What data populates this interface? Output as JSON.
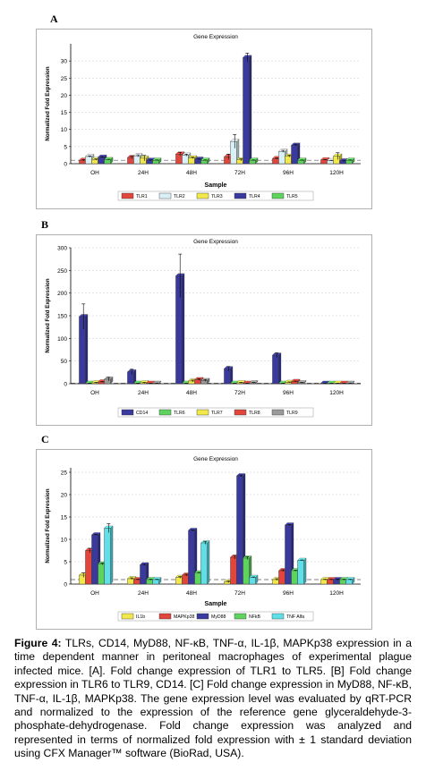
{
  "chart_data": [
    {
      "type": "bar",
      "panel": "A",
      "title": "Gene Expression",
      "xlabel": "Sample",
      "ylabel": "Normalized Fold Expression",
      "categories": [
        "OH",
        "24H",
        "48H",
        "72H",
        "96H",
        "120H"
      ],
      "ylim": [
        0,
        35
      ],
      "yticks": [
        0,
        5,
        10,
        15,
        20,
        25,
        30
      ],
      "legend_position": "bottom",
      "series": [
        {
          "name": "TLR1",
          "color": "#e0463c",
          "values": [
            1.0,
            1.8,
            2.8,
            2.0,
            1.5,
            1.1
          ],
          "errors": [
            0.2,
            0.4,
            0.5,
            0.8,
            0.2,
            0.1
          ]
        },
        {
          "name": "TLR2",
          "color": "#d9f0f7",
          "values": [
            2.1,
            2.3,
            2.5,
            6.5,
            3.6,
            0.9
          ],
          "errors": [
            0.2,
            0.3,
            0.3,
            2.0,
            0.3,
            0.1
          ]
        },
        {
          "name": "TLR3",
          "color": "#f2e84a",
          "values": [
            1.2,
            1.6,
            1.7,
            1.1,
            2.2,
            2.2
          ],
          "errors": [
            0.2,
            0.8,
            0.2,
            0.3,
            0.3,
            1.0
          ]
        },
        {
          "name": "TLR4",
          "color": "#3a3a9e",
          "values": [
            1.9,
            1.0,
            1.3,
            31.0,
            5.4,
            0.8
          ],
          "errors": [
            0.1,
            0.1,
            0.1,
            1.3,
            0.2,
            0.1
          ]
        },
        {
          "name": "TLR5",
          "color": "#5ed35e",
          "values": [
            1.2,
            1.0,
            1.0,
            1.0,
            1.0,
            1.0
          ],
          "errors": [
            0.1,
            0.1,
            0.1,
            0.1,
            0.1,
            0.1
          ]
        }
      ]
    },
    {
      "type": "bar",
      "panel": "B",
      "title": "Gene Expression",
      "xlabel": "",
      "ylabel": "Normalized Fold Expression",
      "categories": [
        "OH",
        "24H",
        "48H",
        "72H",
        "96H",
        "120H"
      ],
      "ylim": [
        0,
        300
      ],
      "yticks": [
        0,
        50,
        100,
        150,
        200,
        250,
        300
      ],
      "legend_position": "bottom",
      "series": [
        {
          "name": "CD14",
          "color": "#3a3a9e",
          "values": [
            148,
            26,
            238,
            33,
            63,
            1
          ],
          "errors": [
            28,
            6,
            48,
            5,
            5,
            0.5
          ]
        },
        {
          "name": "TLR6",
          "color": "#5ed35e",
          "values": [
            1,
            1,
            1,
            1,
            1,
            1
          ],
          "errors": [
            0.5,
            0.5,
            0.5,
            0.5,
            0.5,
            0.5
          ]
        },
        {
          "name": "TLR7",
          "color": "#f2e84a",
          "values": [
            2,
            2,
            6,
            2,
            3,
            1
          ],
          "errors": [
            1,
            1,
            2,
            1,
            1,
            0.5
          ]
        },
        {
          "name": "TLR8",
          "color": "#e0463c",
          "values": [
            4,
            1,
            9,
            1,
            5,
            1
          ],
          "errors": [
            1,
            0.5,
            2,
            0.5,
            1,
            0.5
          ]
        },
        {
          "name": "TLR9",
          "color": "#9a9a9a",
          "values": [
            10,
            1,
            7,
            2,
            2,
            1
          ],
          "errors": [
            4,
            0.5,
            2,
            1,
            1,
            0.5
          ]
        }
      ]
    },
    {
      "type": "bar",
      "panel": "C",
      "title": "Gene Expression",
      "xlabel": "Sample",
      "ylabel": "Normalized Fold Expression",
      "categories": [
        "OH",
        "24H",
        "48H",
        "72H",
        "96H",
        "120H"
      ],
      "ylim": [
        0,
        26
      ],
      "yticks": [
        0,
        5,
        10,
        15,
        20,
        25
      ],
      "legend_position": "bottom",
      "series": [
        {
          "name": "IL1b",
          "color": "#f2e84a",
          "values": [
            2.0,
            1.2,
            1.5,
            0.5,
            1.0,
            1.0
          ],
          "errors": [
            0.5,
            0.2,
            0.2,
            0.2,
            0.2,
            0.1
          ]
        },
        {
          "name": "MAPKp38",
          "color": "#e0463c",
          "values": [
            7.5,
            1.0,
            2.0,
            6.0,
            3.0,
            1.0
          ],
          "errors": [
            0.5,
            0.1,
            0.2,
            0.4,
            0.2,
            0.1
          ]
        },
        {
          "name": "MyD88",
          "color": "#3a3a9e",
          "values": [
            11.0,
            4.3,
            12.0,
            24.2,
            13.2,
            1.0
          ],
          "errors": [
            0.1,
            0.1,
            0.1,
            0.2,
            0.1,
            0.1
          ]
        },
        {
          "name": "NFkB",
          "color": "#5ed35e",
          "values": [
            4.5,
            1.0,
            2.5,
            5.8,
            3.0,
            1.0
          ],
          "errors": [
            0.2,
            0.1,
            0.1,
            0.3,
            0.1,
            0.1
          ]
        },
        {
          "name": "TNF Alfa",
          "color": "#5fe0e8",
          "values": [
            12.5,
            1.0,
            9.2,
            1.5,
            5.3,
            1.0
          ],
          "errors": [
            1.0,
            0.1,
            0.3,
            0.1,
            0.1,
            0.1
          ]
        }
      ]
    }
  ],
  "caption": {
    "label": "Figure 4:",
    "text": "TLRs, CD14, MyD88, NF-κB, TNF-α, IL-1β, MAPKp38 expression in a time dependent manner in peritoneal macrophages of experimental plague infected mice. [A]. Fold change expression of TLR1 to TLR5. [B] Fold change expression in TLR6 to TLR9, CD14. [C] Fold change expression in MyD88, NF-κB, TNF-α, IL-1β, MAPKp38. The gene expression level was evaluated by qRT-PCR and normalized to the expression of the reference gene glyceraldehyde-3-phosphate-dehydrogenase. Fold change expression was analyzed and represented in terms of normalized fold expression with ± 1 standard deviation using CFX Manager™ software (BioRad, USA)."
  }
}
